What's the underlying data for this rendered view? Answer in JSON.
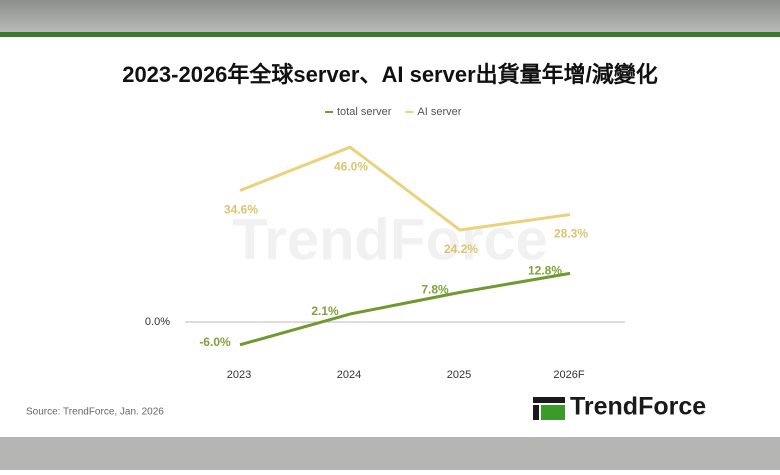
{
  "chart_data": {
    "type": "line",
    "title": "2023-2026年全球server、AI server出貨量年增/減變化",
    "categories": [
      "2023",
      "2024",
      "2025",
      "2026F"
    ],
    "series": [
      {
        "name": "total server",
        "color": "#6f9a2f",
        "label_color": "#7fa23d",
        "values": [
          -6.0,
          2.1,
          7.8,
          12.8
        ],
        "value_labels": [
          "-6.0%",
          "2.1%",
          "7.8%",
          "12.8%"
        ]
      },
      {
        "name": "AI server",
        "color": "#ead27c",
        "label_color": "#dcc46e",
        "values": [
          34.6,
          46.0,
          24.2,
          28.3
        ],
        "value_labels": [
          "34.6%",
          "46.0%",
          "24.2%",
          "28.3%"
        ]
      }
    ],
    "ylim": [
      -10,
      50
    ],
    "yticks": [
      {
        "value": 0,
        "label": "0.0%"
      }
    ],
    "source": "Source: TrendForce, Jan. 2026",
    "brand": "TrendForce"
  }
}
